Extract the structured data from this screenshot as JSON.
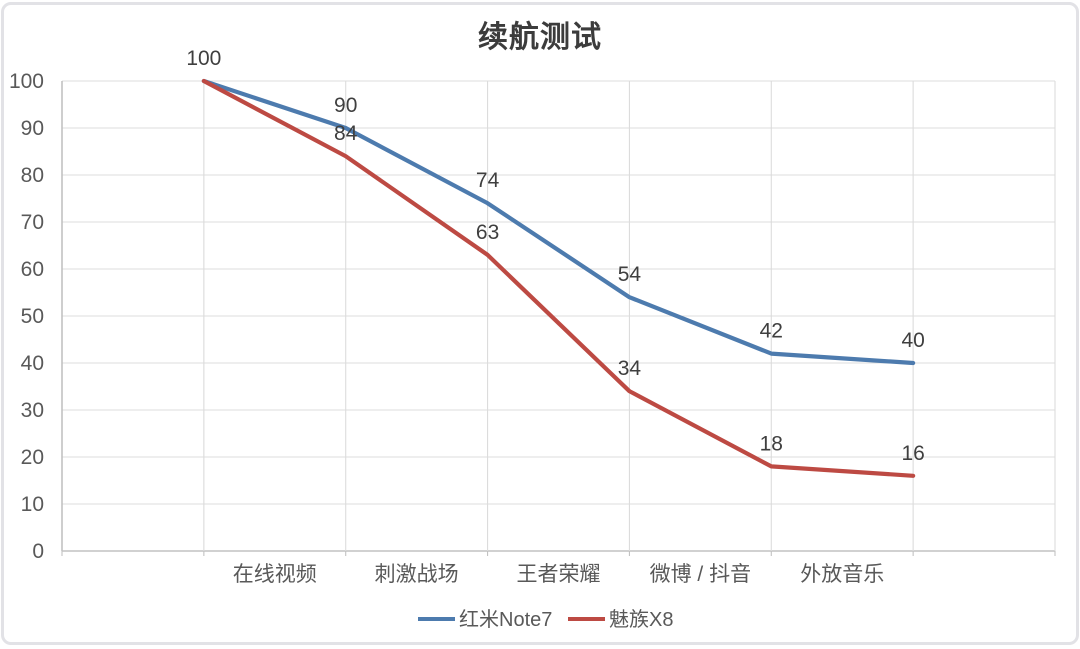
{
  "chart_data": {
    "type": "line",
    "title": "续航测试",
    "categories": [
      "在线视频",
      "刺激战场",
      "王者荣耀",
      "微博 / 抖音",
      "外放音乐"
    ],
    "series": [
      {
        "name": "红米Note7",
        "color": "#4d7bae",
        "values": [
          100,
          90,
          74,
          54,
          42,
          40
        ]
      },
      {
        "name": "魅族X8",
        "color": "#bd4a43",
        "values": [
          100,
          84,
          63,
          34,
          18,
          16
        ]
      }
    ],
    "ylim": [
      0,
      100
    ],
    "yticks": [
      100,
      90,
      80,
      70,
      60,
      50,
      40,
      30,
      20,
      10,
      0
    ],
    "xlabel": "",
    "ylabel": "",
    "grid": true,
    "data_labels": true,
    "legend_position": "bottom",
    "layout_note": "6 points per series placed on vertical gridlines; category labels centered between successive points; rightmost grid interval unlabeled",
    "style": {
      "grid_color": "#dcdcdc",
      "axis_color": "#c2c2c2",
      "tick_color": "#595959",
      "data_label_color": "#3f3f3f",
      "title_color": "#3c3c3c"
    }
  }
}
